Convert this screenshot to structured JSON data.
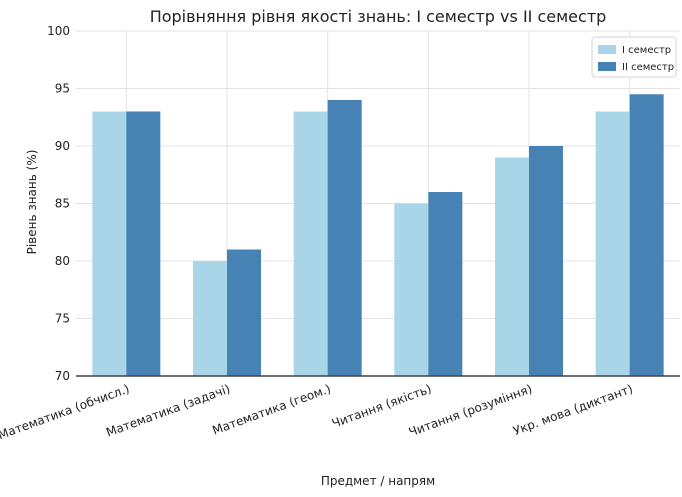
{
  "chart_data": {
    "type": "bar",
    "title": "Порівняння рівня якості знань: І семестр vs ІІ семестр",
    "xlabel": "Предмет / напрям",
    "ylabel": "Рівень знань (%)",
    "categories": [
      "Математика (обчисл.)",
      "Математика (задачі)",
      "Математика (геом.)",
      "Читання (якість)",
      "Читання (розуміння)",
      "Укр. мова (диктант)"
    ],
    "series": [
      {
        "name": "І семестр",
        "values": [
          93,
          80,
          93,
          85,
          89,
          93
        ],
        "color": "#a8d5e8"
      },
      {
        "name": "ІІ семестр",
        "values": [
          93,
          81,
          94,
          86,
          90,
          94.5
        ],
        "color": "#4682b4"
      }
    ],
    "ylim": [
      70,
      100
    ],
    "yticks": [
      70,
      75,
      80,
      85,
      90,
      95,
      100
    ],
    "grid": true,
    "legend_position": "top-right"
  }
}
